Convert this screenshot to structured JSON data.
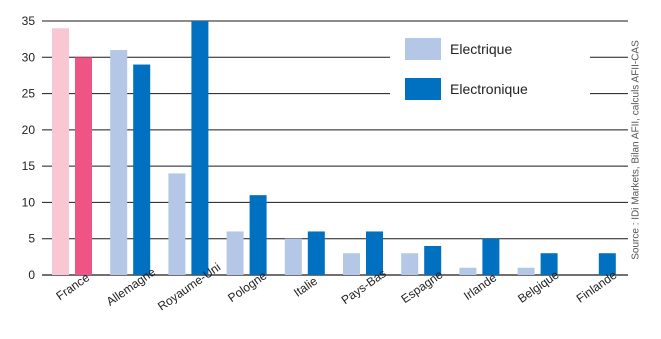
{
  "chart_data": {
    "type": "bar",
    "title": "",
    "xlabel": "",
    "ylabel": "",
    "ylim": [
      0,
      35
    ],
    "yticks": [
      0,
      5,
      10,
      15,
      20,
      25,
      30,
      35
    ],
    "grid": "horizontal",
    "legend_position": "top-right",
    "categories": [
      "France",
      "Allemagne",
      "Royaume-Uni",
      "Pologne",
      "Italie",
      "Pays-Bas",
      "Espagne",
      "Irlande",
      "Belgique",
      "Finlande"
    ],
    "series": [
      {
        "name": "Electrique",
        "values": [
          34,
          31,
          14,
          6,
          5,
          3,
          3,
          1,
          1,
          0
        ],
        "color": "#b4c7e7"
      },
      {
        "name": "Electronique",
        "values": [
          30,
          29,
          35,
          11,
          6,
          6,
          4,
          5,
          3,
          3
        ],
        "color": "#0070c0"
      }
    ],
    "highlight": {
      "category": "France",
      "colors": [
        "#f9c6d4",
        "#ee5584"
      ]
    },
    "source_note": "Source : IDi Markets, Bilan AFII, calculs AFII-CAS"
  }
}
